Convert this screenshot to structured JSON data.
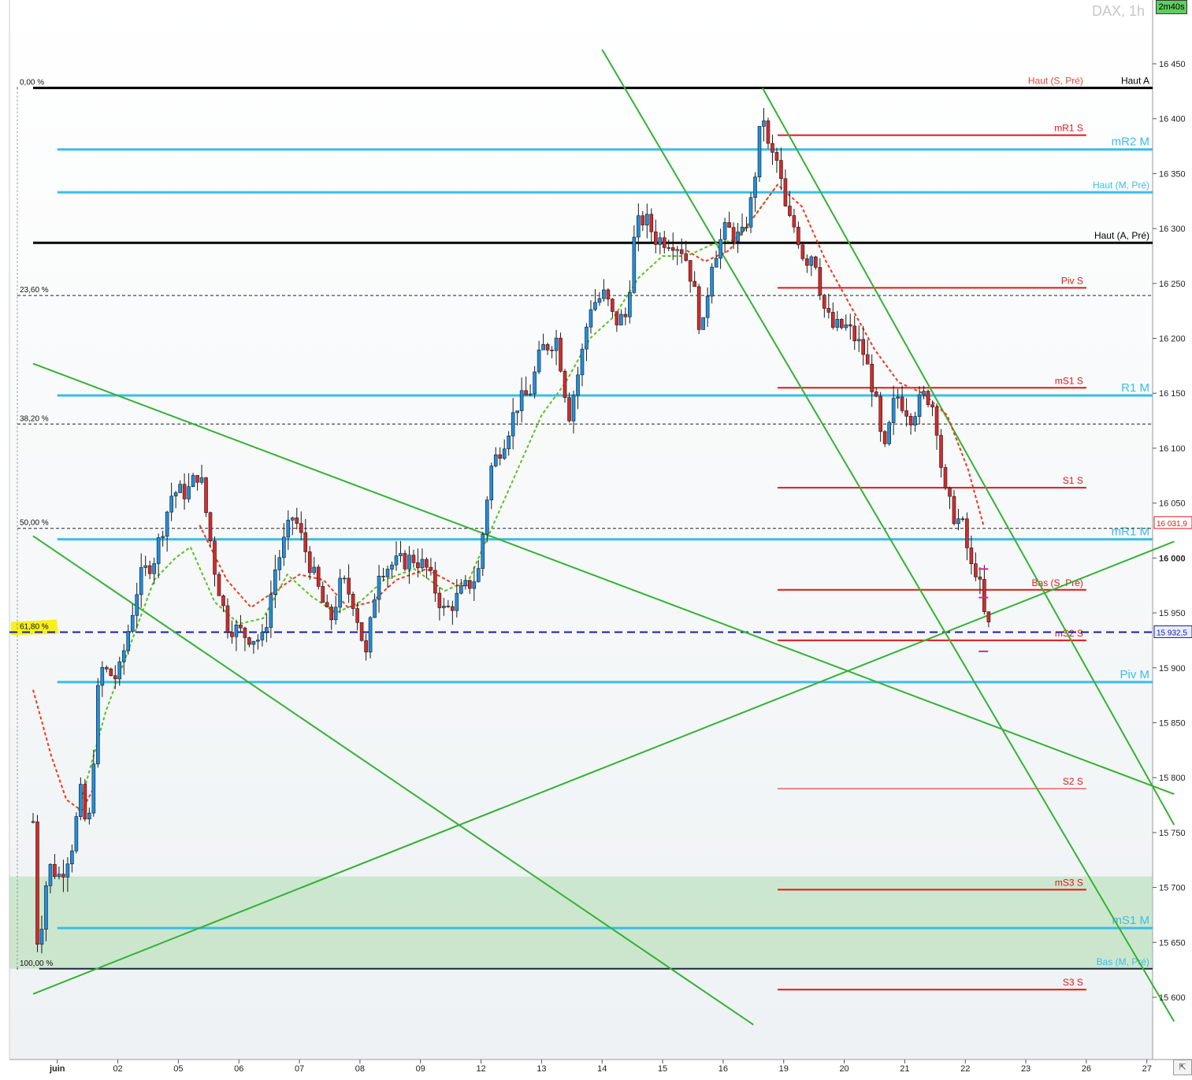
{
  "header": {
    "instrument": "DAX, 1h",
    "countdown": "2m40s"
  },
  "chart_data": {
    "type": "candlestick",
    "symbol": "DAX",
    "timeframe": "1h",
    "ylim": [
      15580,
      16470
    ],
    "y_ticks": [
      {
        "value": 16450,
        "label": "16 450"
      },
      {
        "value": 16400,
        "label": "16 400"
      },
      {
        "value": 16350,
        "label": "16 350"
      },
      {
        "value": 16300,
        "label": "16 300"
      },
      {
        "value": 16250,
        "label": "16 250"
      },
      {
        "value": 16200,
        "label": "16 200"
      },
      {
        "value": 16150,
        "label": "16 150"
      },
      {
        "value": 16100,
        "label": "16 100"
      },
      {
        "value": 16050,
        "label": "16 050"
      },
      {
        "value": 16000,
        "label": "16 000",
        "bold": true
      },
      {
        "value": 15950,
        "label": "15 950"
      },
      {
        "value": 15900,
        "label": "15 900"
      },
      {
        "value": 15850,
        "label": "15 850"
      },
      {
        "value": 15800,
        "label": "15 800"
      },
      {
        "value": 15750,
        "label": "15 750"
      },
      {
        "value": 15700,
        "label": "15 700"
      },
      {
        "value": 15650,
        "label": "15 650"
      },
      {
        "value": 15600,
        "label": "15 600"
      }
    ],
    "x_ticks": [
      {
        "t": 0.4,
        "label": "juin",
        "bold": true
      },
      {
        "t": 1.4,
        "label": "02"
      },
      {
        "t": 2.4,
        "label": "05"
      },
      {
        "t": 3.4,
        "label": "06"
      },
      {
        "t": 4.4,
        "label": "07"
      },
      {
        "t": 5.4,
        "label": "08"
      },
      {
        "t": 6.4,
        "label": "09"
      },
      {
        "t": 7.4,
        "label": "12"
      },
      {
        "t": 8.4,
        "label": "13"
      },
      {
        "t": 9.4,
        "label": "14"
      },
      {
        "t": 10.4,
        "label": "15"
      },
      {
        "t": 11.4,
        "label": "16"
      },
      {
        "t": 12.4,
        "label": "19"
      },
      {
        "t": 13.4,
        "label": "20"
      },
      {
        "t": 14.4,
        "label": "21"
      },
      {
        "t": 15.4,
        "label": "22"
      },
      {
        "t": 16.4,
        "label": "23"
      },
      {
        "t": 17.4,
        "label": "26"
      },
      {
        "t": 18.4,
        "label": "27"
      }
    ],
    "xlim": [
      0,
      18.85
    ],
    "price_path": [
      [
        0.0,
        15760
      ],
      [
        0.08,
        15640
      ],
      [
        0.25,
        15720
      ],
      [
        0.45,
        15710
      ],
      [
        0.65,
        15740
      ],
      [
        0.8,
        15790
      ],
      [
        0.9,
        15740
      ],
      [
        1.1,
        15900
      ],
      [
        1.4,
        15890
      ],
      [
        1.75,
        15980
      ],
      [
        2.0,
        16000
      ],
      [
        2.3,
        16060
      ],
      [
        2.55,
        16060
      ],
      [
        2.75,
        16080
      ],
      [
        3.0,
        15990
      ],
      [
        3.2,
        15940
      ],
      [
        3.5,
        15930
      ],
      [
        3.8,
        15925
      ],
      [
        4.0,
        15990
      ],
      [
        4.3,
        16040
      ],
      [
        4.6,
        15990
      ],
      [
        4.9,
        15940
      ],
      [
        5.1,
        15980
      ],
      [
        5.3,
        15960
      ],
      [
        5.5,
        15910
      ],
      [
        5.7,
        15990
      ],
      [
        6.0,
        15995
      ],
      [
        6.3,
        16000
      ],
      [
        6.5,
        15990
      ],
      [
        6.8,
        15950
      ],
      [
        7.1,
        15970
      ],
      [
        7.35,
        15985
      ],
      [
        7.55,
        16080
      ],
      [
        7.8,
        16110
      ],
      [
        8.0,
        16140
      ],
      [
        8.2,
        16150
      ],
      [
        8.4,
        16190
      ],
      [
        8.65,
        16200
      ],
      [
        8.85,
        16130
      ],
      [
        9.05,
        16180
      ],
      [
        9.2,
        16230
      ],
      [
        9.45,
        16240
      ],
      [
        9.6,
        16215
      ],
      [
        9.8,
        16220
      ],
      [
        9.95,
        16300
      ],
      [
        10.1,
        16310
      ],
      [
        10.3,
        16290
      ],
      [
        10.55,
        16290
      ],
      [
        10.75,
        16280
      ],
      [
        10.9,
        16250
      ],
      [
        11.05,
        16200
      ],
      [
        11.2,
        16270
      ],
      [
        11.45,
        16300
      ],
      [
        11.7,
        16290
      ],
      [
        11.85,
        16320
      ],
      [
        11.95,
        16360
      ],
      [
        12.05,
        16410
      ],
      [
        12.15,
        16370
      ],
      [
        12.3,
        16360
      ],
      [
        12.45,
        16310
      ],
      [
        12.6,
        16300
      ],
      [
        12.75,
        16270
      ],
      [
        12.9,
        16280
      ],
      [
        13.05,
        16230
      ],
      [
        13.2,
        16210
      ],
      [
        13.45,
        16210
      ],
      [
        13.7,
        16190
      ],
      [
        13.9,
        16150
      ],
      [
        14.05,
        16090
      ],
      [
        14.25,
        16150
      ],
      [
        14.5,
        16130
      ],
      [
        14.75,
        16150
      ],
      [
        14.9,
        16135
      ],
      [
        15.05,
        16060
      ],
      [
        15.2,
        16040
      ],
      [
        15.35,
        16030
      ],
      [
        15.5,
        15990
      ],
      [
        15.6,
        15990
      ],
      [
        15.7,
        15950
      ],
      [
        15.8,
        15935
      ]
    ],
    "ma_green": [
      [
        0.75,
        15770
      ],
      [
        1.2,
        15860
      ],
      [
        1.6,
        15920
      ],
      [
        2.0,
        15980
      ],
      [
        2.35,
        16000
      ],
      [
        2.6,
        16010
      ],
      [
        3.0,
        15960
      ],
      [
        3.4,
        15940
      ],
      [
        3.8,
        15945
      ],
      [
        4.2,
        15985
      ],
      [
        4.6,
        15965
      ],
      [
        5.0,
        15950
      ],
      [
        5.4,
        15960
      ],
      [
        5.8,
        15980
      ],
      [
        6.3,
        15990
      ],
      [
        6.8,
        15970
      ],
      [
        7.2,
        15980
      ],
      [
        7.6,
        16030
      ],
      [
        8.0,
        16080
      ],
      [
        8.4,
        16130
      ],
      [
        8.8,
        16160
      ],
      [
        9.2,
        16200
      ],
      [
        9.6,
        16220
      ],
      [
        10.0,
        16255
      ],
      [
        10.4,
        16275
      ],
      [
        10.8,
        16275
      ],
      [
        11.2,
        16285
      ],
      [
        11.6,
        16290
      ],
      [
        11.9,
        16310
      ],
      [
        12.3,
        16340
      ]
    ],
    "ma_red": [
      [
        0.0,
        15880
      ],
      [
        0.3,
        15820
      ],
      [
        0.55,
        15780
      ],
      [
        0.8,
        15770
      ],
      [
        1.0,
        15790
      ]
    ],
    "ma_red_2": [
      [
        2.75,
        16030
      ],
      [
        3.2,
        15980
      ],
      [
        3.6,
        15955
      ],
      [
        4.0,
        15970
      ],
      [
        4.4,
        15985
      ],
      [
        4.8,
        15980
      ],
      [
        5.2,
        15955
      ],
      [
        5.6,
        15960
      ],
      [
        6.0,
        15980
      ],
      [
        6.5,
        15990
      ],
      [
        7.0,
        15975
      ],
      [
        7.3,
        15975
      ]
    ],
    "ma_red_3": [
      [
        10.8,
        16280
      ],
      [
        11.1,
        16270
      ],
      [
        11.5,
        16280
      ],
      [
        11.9,
        16310
      ],
      [
        12.3,
        16340
      ],
      [
        12.7,
        16320
      ],
      [
        13.1,
        16270
      ],
      [
        13.5,
        16230
      ],
      [
        13.9,
        16190
      ],
      [
        14.3,
        16160
      ],
      [
        14.7,
        16150
      ],
      [
        15.1,
        16130
      ],
      [
        15.45,
        16080
      ],
      [
        15.7,
        16030
      ]
    ],
    "horizontal_levels": [
      {
        "value": 16428,
        "label": "Haut A",
        "color": "#000000",
        "width": 3,
        "from": 0.0,
        "to": 18.85,
        "label_pos": "right"
      },
      {
        "value": 16428,
        "label": "Haut (S, Pré)",
        "color": "#e8473a",
        "width": 0,
        "from": 12.3,
        "to": 17.4,
        "label_pos": "end"
      },
      {
        "value": 16385,
        "label": "mR1 S",
        "color": "#e01818",
        "width": 2,
        "from": 12.3,
        "to": 17.4,
        "label_pos": "end"
      },
      {
        "value": 16372,
        "label": "mR2 M",
        "color": "#3bbde8",
        "width": 3,
        "from": 0.4,
        "to": 18.85,
        "label_pos": "right"
      },
      {
        "value": 16333,
        "label": "Haut (M, Pré)",
        "color": "#3bbde8",
        "width": 3,
        "from": 0.4,
        "to": 18.85,
        "label_pos": "right"
      },
      {
        "value": 16287,
        "label": "Haut (A, Pré)",
        "color": "#000000",
        "width": 3,
        "from": 0.0,
        "to": 18.85,
        "label_pos": "right"
      },
      {
        "value": 16246,
        "label": "Piv S",
        "color": "#e01818",
        "width": 2,
        "from": 12.3,
        "to": 17.4,
        "label_pos": "end"
      },
      {
        "value": 16155,
        "label": "mS1 S",
        "color": "#e01818",
        "width": 2,
        "from": 12.3,
        "to": 17.4,
        "label_pos": "end"
      },
      {
        "value": 16148,
        "label": "R1 M",
        "color": "#3bbde8",
        "width": 3,
        "from": 0.4,
        "to": 18.85,
        "label_pos": "right"
      },
      {
        "value": 16064,
        "label": "S1 S",
        "color": "#e01818",
        "width": 2,
        "from": 12.3,
        "to": 17.4,
        "label_pos": "end"
      },
      {
        "value": 16017,
        "label": "mR1 M",
        "color": "#3bbde8",
        "width": 3,
        "from": 0.4,
        "to": 18.85,
        "label_pos": "right"
      },
      {
        "value": 15971,
        "label": "Bas (S, Pré)",
        "color": "#e01818",
        "width": 2,
        "from": 12.3,
        "to": 17.4,
        "label_pos": "end"
      },
      {
        "value": 15925,
        "label": "mS2 S",
        "color": "#e01818",
        "width": 2,
        "from": 12.3,
        "to": 17.4,
        "label_pos": "end"
      },
      {
        "value": 15887,
        "label": "Piv M",
        "color": "#3bbde8",
        "width": 3,
        "from": 0.4,
        "to": 18.85,
        "label_pos": "right"
      },
      {
        "value": 15790,
        "label": "S2 S",
        "color": "#e01818",
        "width": 1,
        "from": 12.3,
        "to": 17.4,
        "label_pos": "end"
      },
      {
        "value": 15698,
        "label": "mS3 S",
        "color": "#e01818",
        "width": 2,
        "from": 12.3,
        "to": 17.4,
        "label_pos": "end"
      },
      {
        "value": 15663,
        "label": "mS1 M",
        "color": "#3bbde8",
        "width": 3,
        "from": 0.4,
        "to": 18.85,
        "label_pos": "right"
      },
      {
        "value": 15626,
        "label": "Bas (M, Pré)",
        "color": "#1a2a3a",
        "width": 2,
        "from": 0.1,
        "to": 18.85,
        "label_pos": "right",
        "label_color": "#3bbde8"
      },
      {
        "value": 15607,
        "label": "S3 S",
        "color": "#e01818",
        "width": 2,
        "from": 12.3,
        "to": 17.4,
        "label_pos": "end"
      }
    ],
    "fibonacci": [
      {
        "value": 16428,
        "label": "0,00 %"
      },
      {
        "value": 16239,
        "label": "23,60 %"
      },
      {
        "value": 16122,
        "label": "38,20 %"
      },
      {
        "value": 16027,
        "label": "50,00 %"
      },
      {
        "value": 15932.5,
        "label": "61,80 %",
        "highlight": true
      },
      {
        "value": 15626,
        "label": "100,00 %"
      }
    ],
    "current_price": {
      "value": 15932.5,
      "label": "15 932,5"
    },
    "ma_price_tag": {
      "value": 16031.9,
      "label": "16 031,9"
    },
    "trendlines": [
      [
        [
          0.0,
          16177
        ],
        [
          18.85,
          15785
        ]
      ],
      [
        [
          0.0,
          16020
        ],
        [
          11.9,
          15575
        ]
      ],
      [
        [
          0.0,
          15603
        ],
        [
          18.85,
          16015
        ]
      ],
      [
        [
          9.4,
          16463
        ],
        [
          18.85,
          15578
        ]
      ],
      [
        [
          12.05,
          16428
        ],
        [
          18.85,
          15757
        ]
      ]
    ],
    "support_zone": {
      "from": 15626,
      "to": 15710
    },
    "markers": [
      {
        "t": 15.7,
        "value": 15990,
        "color": "#c8308c"
      },
      {
        "t": 15.7,
        "value": 15964,
        "color": "#c8308c"
      },
      {
        "t": 15.7,
        "value": 15915,
        "color": "#c8308c"
      }
    ]
  }
}
